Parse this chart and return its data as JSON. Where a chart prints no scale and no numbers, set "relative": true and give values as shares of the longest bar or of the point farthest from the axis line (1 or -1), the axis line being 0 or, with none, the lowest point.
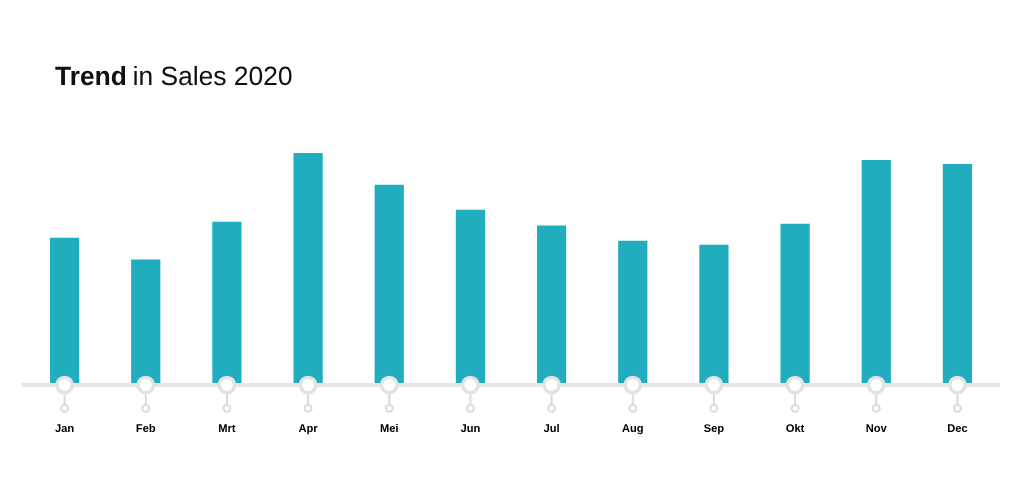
{
  "chart_data": {
    "type": "bar",
    "title": "Trend in Sales 2020",
    "relative": true,
    "categories": [
      "Jan",
      "Feb",
      "Mrt",
      "Apr",
      "Mei",
      "Jun",
      "Jul",
      "Aug",
      "Sep",
      "Okt",
      "Nov",
      "Dec"
    ],
    "values": [
      0.635,
      0.541,
      0.704,
      1,
      0.863,
      0.755,
      0.687,
      0.622,
      0.605,
      0.695,
      0.97,
      0.953
    ],
    "color": "#21adbd",
    "grid": false,
    "legend": false
  }
}
